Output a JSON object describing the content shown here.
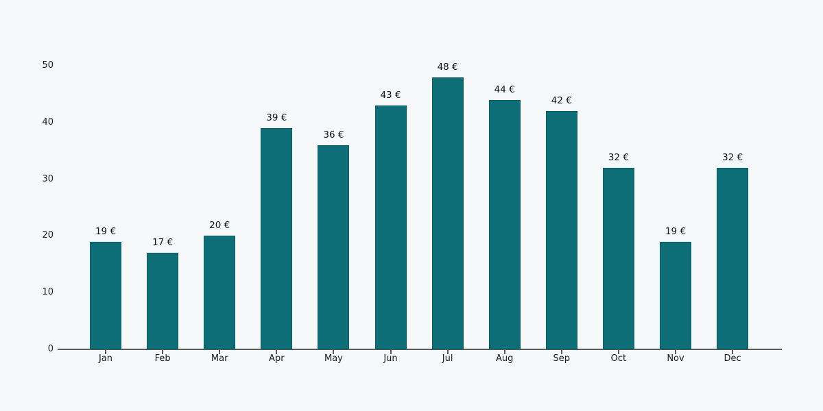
{
  "chart_data": {
    "type": "bar",
    "title": "",
    "xlabel": "",
    "ylabel": "",
    "categories": [
      "Jan",
      "Feb",
      "Mar",
      "Apr",
      "May",
      "Jun",
      "Jul",
      "Aug",
      "Sep",
      "Oct",
      "Nov",
      "Dec"
    ],
    "values": [
      19,
      17,
      20,
      39,
      36,
      43,
      48,
      44,
      42,
      32,
      19,
      32
    ],
    "value_labels": [
      "19 €",
      "17 €",
      "20 €",
      "39 €",
      "36 €",
      "43 €",
      "48 €",
      "44 €",
      "42 €",
      "32 €",
      "19 €",
      "32 €"
    ],
    "yticks": [
      0,
      10,
      20,
      30,
      40,
      50
    ],
    "ytick_labels": [
      "0",
      "10",
      "20",
      "30",
      "40",
      "50"
    ],
    "ylim": [
      0,
      52
    ],
    "grid": false,
    "legend": null,
    "currency": "€",
    "colors": {
      "bar_fill": "#0d6e78",
      "bar_edge": "#0a5a64",
      "axis_line": "#5a5a5a",
      "text": "#1a1a1a",
      "background": "#f7f8fa"
    }
  }
}
